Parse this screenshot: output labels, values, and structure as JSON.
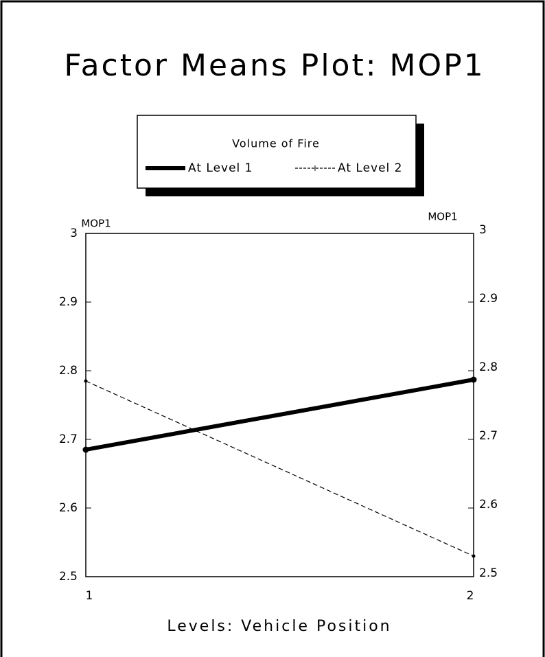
{
  "chart_data": {
    "type": "line",
    "title": "Factor Means Plot: MOP1",
    "legend_title": "Volume of Fire",
    "x_label": "Levels: Vehicle Position",
    "y_label": "MOP1",
    "y2_label": "MOP1",
    "categories": [
      "1",
      "2"
    ],
    "series": [
      {
        "name": "At Level 1",
        "color": "#000000",
        "line_width": 6,
        "dashed": false,
        "values": [
          2.685,
          2.787
        ]
      },
      {
        "name": "At Level 2",
        "color": "#000000",
        "line_width": 1.2,
        "dashed": true,
        "values": [
          2.785,
          2.53
        ]
      }
    ],
    "ylim": [
      2.5,
      3
    ],
    "yticks": [
      2.5,
      2.6,
      2.7,
      2.8,
      2.9,
      3
    ],
    "y2lim": [
      2.5,
      3
    ],
    "y2ticks": [
      2.5,
      2.6,
      2.7,
      2.8,
      2.9,
      3
    ],
    "legend": "top",
    "grid": false
  }
}
